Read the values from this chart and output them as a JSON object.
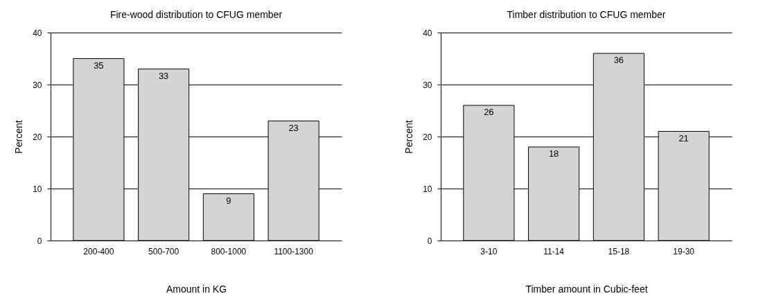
{
  "chart_data": [
    {
      "type": "bar",
      "title": "Fire-wood distribution to CFUG member",
      "xlabel": "Amount in KG",
      "ylabel": "Percent",
      "categories": [
        "200-400",
        "500-700",
        "800-1000",
        "1100-1300"
      ],
      "values": [
        35,
        33,
        9,
        23
      ],
      "color": "#d4d4d4",
      "ylim": [
        0,
        40
      ],
      "yticks": [
        0,
        10,
        20,
        30,
        40
      ],
      "grid": "y",
      "data_labels": true
    },
    {
      "type": "bar",
      "title": "Timber distribution to CFUG member",
      "xlabel": "Timber amount in Cubic-feet",
      "ylabel": "Percent",
      "categories": [
        "3-10",
        "11-14",
        "15-18",
        "19-30"
      ],
      "values": [
        26,
        18,
        36,
        21
      ],
      "color": "#d4d4d4",
      "ylim": [
        0,
        40
      ],
      "yticks": [
        0,
        10,
        20,
        30,
        40
      ],
      "grid": "y",
      "data_labels": true
    }
  ]
}
